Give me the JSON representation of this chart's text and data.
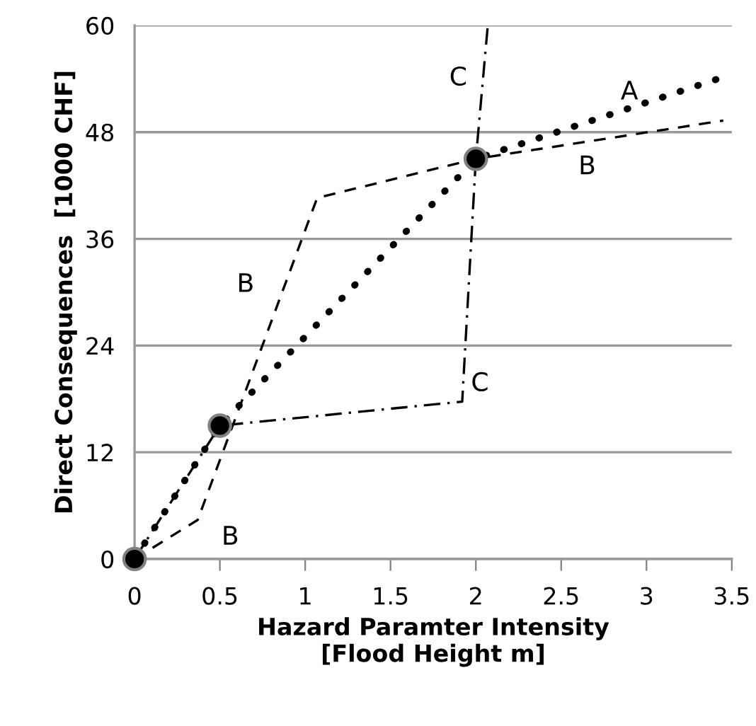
{
  "chart_data": {
    "type": "line",
    "xlabel": "Hazard Paramter Intensity\n[Flood Height m]",
    "ylabel": "Direct Consequences  [1000 CHF]",
    "xlim": [
      0,
      3.5
    ],
    "xticks": [
      0,
      0.5,
      1,
      1.5,
      2,
      2.5,
      3,
      3.5
    ],
    "ylim": [
      0,
      60
    ],
    "yticks": [
      0,
      12,
      24,
      36,
      48,
      60
    ],
    "grid": "y",
    "legend": false,
    "series": [
      {
        "name": "A",
        "x": [
          0,
          0.5,
          2,
          3.5
        ],
        "values": [
          0,
          15,
          45,
          54.5
        ],
        "color": "#000000",
        "line_style": "dotted"
      },
      {
        "name": "B",
        "x": [
          0,
          0.37,
          1.07,
          2,
          3.45
        ],
        "values": [
          0,
          4.4,
          40.6,
          45,
          49.3
        ],
        "color": "#000000",
        "line_style": "dashed"
      },
      {
        "name": "C",
        "x": [
          0,
          0.5,
          1.92,
          2,
          2.07
        ],
        "values": [
          0,
          15,
          17.7,
          45,
          60
        ],
        "color": "#000000",
        "line_style": "dashdot"
      },
      {
        "type": "scatter",
        "x": [
          0,
          0.5,
          2
        ],
        "values": [
          0,
          15,
          45
        ],
        "color": "#000000",
        "marker": "circle"
      }
    ]
  }
}
